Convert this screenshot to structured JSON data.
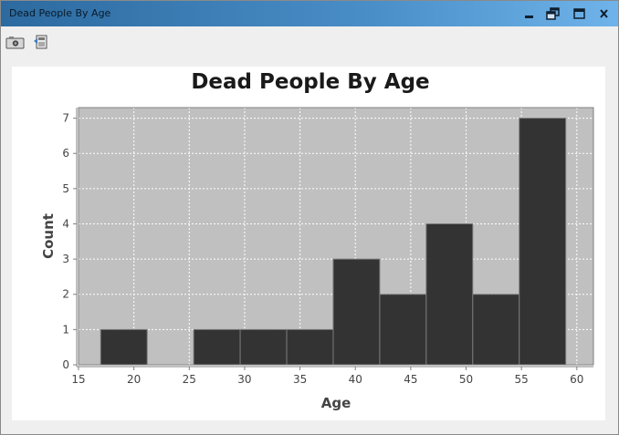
{
  "window": {
    "title": "Dead People By Age",
    "controls": {
      "minimize_icon": "minimize-icon",
      "restore_icon": "restore-icon",
      "maximize_icon": "maximize-icon",
      "close_icon": "close-icon"
    }
  },
  "toolbar": {
    "items": [
      {
        "name": "screenshot-button",
        "icon": "camera-icon"
      },
      {
        "name": "export-button",
        "icon": "export-icon"
      }
    ]
  },
  "colors": {
    "plot_background": "#c0c0c0",
    "bar_fill": "#333333",
    "grid": "#ffffff"
  },
  "chart_data": {
    "type": "bar",
    "title": "Dead People By Age",
    "xlabel": "Age",
    "ylabel": "Count",
    "xlim": [
      15,
      61.5
    ],
    "ylim": [
      0,
      7.3
    ],
    "xticks": [
      15,
      20,
      25,
      30,
      35,
      40,
      45,
      50,
      55,
      60
    ],
    "yticks": [
      0,
      1,
      2,
      3,
      4,
      5,
      6,
      7
    ],
    "grid": true,
    "bins": [
      {
        "start": 17.0,
        "end": 21.2,
        "value": 1
      },
      {
        "start": 21.2,
        "end": 25.4,
        "value": 0
      },
      {
        "start": 25.4,
        "end": 29.6,
        "value": 1
      },
      {
        "start": 29.6,
        "end": 33.8,
        "value": 1
      },
      {
        "start": 33.8,
        "end": 38.0,
        "value": 1
      },
      {
        "start": 38.0,
        "end": 42.2,
        "value": 3
      },
      {
        "start": 42.2,
        "end": 46.4,
        "value": 2
      },
      {
        "start": 46.4,
        "end": 50.6,
        "value": 4
      },
      {
        "start": 50.6,
        "end": 54.8,
        "value": 2
      },
      {
        "start": 54.8,
        "end": 59.0,
        "value": 7
      }
    ]
  }
}
